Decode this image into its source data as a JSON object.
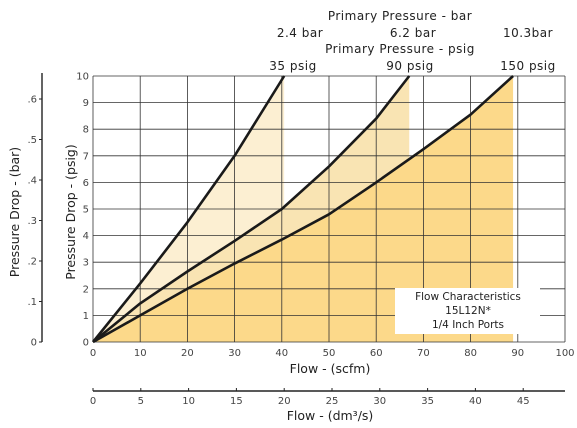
{
  "chart_data": {
    "type": "line",
    "top_axis": {
      "bar_title": "Primary Pressure - bar",
      "bar_labels": [
        "2.4 bar",
        "6.2 bar",
        "10.3bar"
      ],
      "psig_title": "Primary Pressure - psig",
      "psig_labels": [
        "35 psig",
        "90 psig",
        "150 psig"
      ]
    },
    "x_axis": {
      "label": "Flow - (scfm)",
      "ticks": [
        0,
        10,
        20,
        30,
        40,
        50,
        60,
        70,
        80,
        90,
        100
      ],
      "range": [
        0,
        100
      ]
    },
    "x_axis_secondary": {
      "label": "Flow - (dm³/s)",
      "ticks": [
        "0",
        "5",
        "10",
        "15",
        "20",
        "25",
        "30",
        "35",
        "40",
        "45"
      ],
      "units": "dm³/s"
    },
    "y_axis": {
      "label": "Pressure Drop - (psig)",
      "ticks": [
        0,
        1,
        2,
        3,
        4,
        5,
        6,
        7,
        8,
        9,
        10
      ],
      "range": [
        0,
        10
      ]
    },
    "y_axis_secondary": {
      "label": "Pressure Drop - (bar)",
      "ticks": [
        "0",
        ".1",
        ".2",
        ".3",
        ".4",
        ".5",
        ".6"
      ]
    },
    "series": [
      {
        "name": "35 psig",
        "x": [
          0,
          10,
          20,
          30,
          40.5
        ],
        "y": [
          0,
          2.2,
          4.5,
          7.0,
          10.0
        ],
        "fill": "#fcefd2"
      },
      {
        "name": "90 psig",
        "x": [
          0,
          10,
          20,
          30,
          40,
          50,
          60,
          67
        ],
        "y": [
          0,
          1.45,
          2.65,
          3.8,
          5.0,
          6.6,
          8.4,
          10.0
        ],
        "fill": "#f9e4b3"
      },
      {
        "name": "150 psig",
        "x": [
          0,
          10,
          20,
          30,
          40,
          50,
          60,
          70,
          80,
          89
        ],
        "y": [
          0,
          1.0,
          2.0,
          2.95,
          3.85,
          4.8,
          6.0,
          7.25,
          8.55,
          10.0
        ],
        "fill": "#fcd98a"
      }
    ],
    "legend_box": {
      "line1": "Flow Characteristics",
      "line2": "15L12N*",
      "line3": "1/4 Inch Ports"
    },
    "grid": true
  },
  "colors": {
    "line": "#1a1a1a",
    "grid": "#333333"
  }
}
